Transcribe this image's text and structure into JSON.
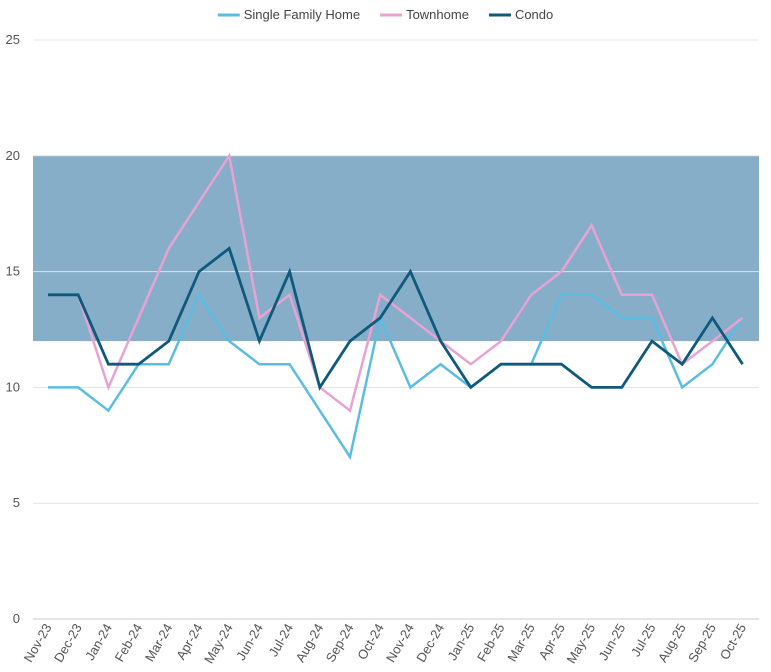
{
  "chart_data": {
    "type": "line",
    "title": "",
    "xlabel": "",
    "ylabel": "",
    "ylim": [
      0,
      25
    ],
    "yticks": [
      0,
      5,
      10,
      15,
      20,
      25
    ],
    "grid": true,
    "legend_position": "top-center",
    "band": {
      "y_from": 12,
      "y_to": 20,
      "color": "#86aec9"
    },
    "categories": [
      "Nov-23",
      "Dec-23",
      "Jan-24",
      "Feb-24",
      "Mar-24",
      "Apr-24",
      "May-24",
      "Jun-24",
      "Jul-24",
      "Aug-24",
      "Sep-24",
      "Oct-24",
      "Nov-24",
      "Dec-24",
      "Jan-25",
      "Feb-25",
      "Mar-25",
      "Apr-25",
      "May-25",
      "Jun-25",
      "Jul-25",
      "Aug-25",
      "Sep-25",
      "Oct-25"
    ],
    "series": [
      {
        "name": "Single Family Home",
        "color": "#5bbde0",
        "values": [
          10,
          10,
          9,
          11,
          11,
          14,
          12,
          11,
          11,
          9,
          7,
          13,
          10,
          11,
          10,
          11,
          11,
          14,
          14,
          13,
          13,
          10,
          11,
          13
        ]
      },
      {
        "name": "Townhome",
        "color": "#e8a3d3",
        "values": [
          14,
          14,
          10,
          13,
          16,
          18,
          20,
          13,
          14,
          10,
          9,
          14,
          13,
          12,
          11,
          12,
          14,
          15,
          17,
          14,
          14,
          11,
          12,
          13
        ]
      },
      {
        "name": "Condo",
        "color": "#0f5a7c",
        "values": [
          14,
          14,
          11,
          11,
          12,
          15,
          16,
          12,
          15,
          10,
          12,
          13,
          15,
          12,
          10,
          11,
          11,
          11,
          10,
          10,
          12,
          11,
          13,
          11
        ]
      }
    ]
  }
}
